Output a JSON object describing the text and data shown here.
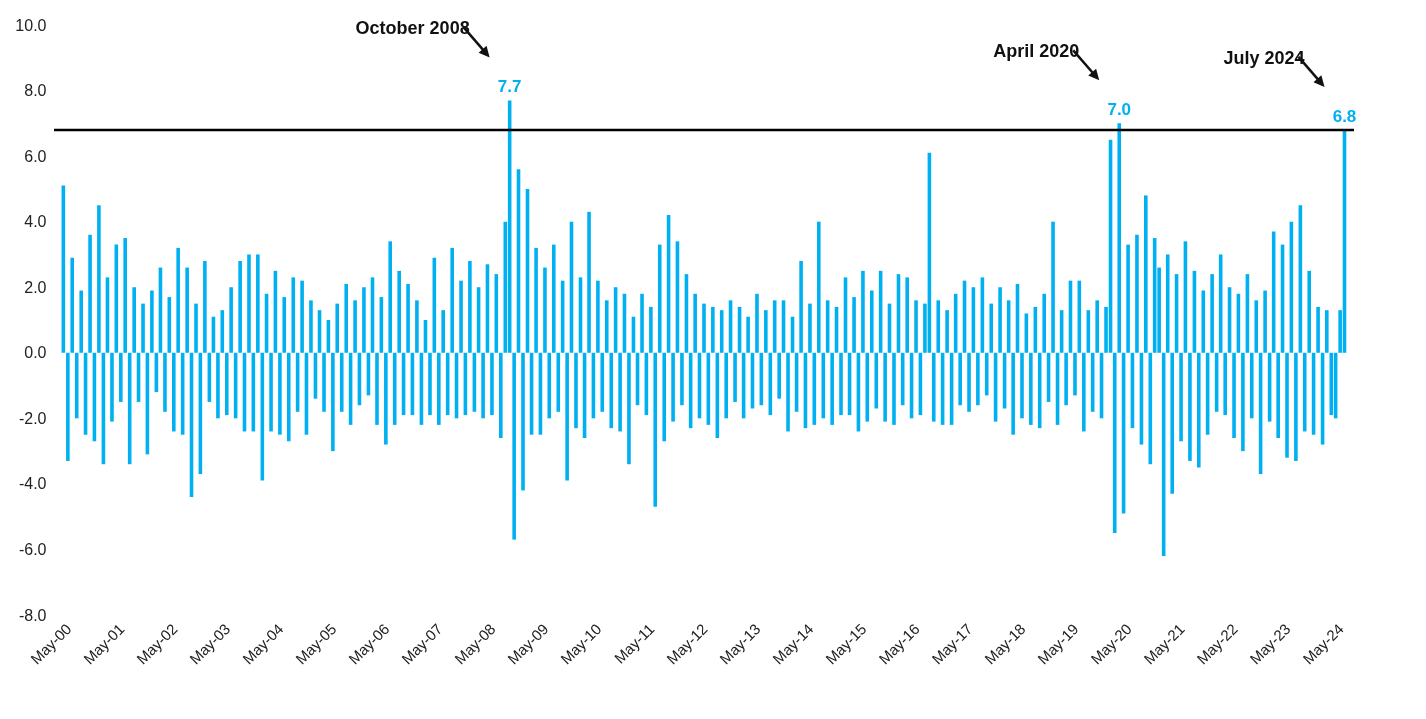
{
  "chart_data": {
    "type": "bar",
    "color": "#00b0f0",
    "x": [
      "2000-05",
      "2000-06",
      "2000-07",
      "2000-08",
      "2000-09",
      "2000-10",
      "2000-11",
      "2000-12",
      "2001-01",
      "2001-02",
      "2001-03",
      "2001-04",
      "2001-05",
      "2001-06",
      "2001-07",
      "2001-08",
      "2001-09",
      "2001-10",
      "2001-11",
      "2001-12",
      "2002-01",
      "2002-02",
      "2002-03",
      "2002-04",
      "2002-05",
      "2002-06",
      "2002-07",
      "2002-08",
      "2002-09",
      "2002-10",
      "2002-11",
      "2002-12",
      "2003-01",
      "2003-02",
      "2003-03",
      "2003-04",
      "2003-05",
      "2003-06",
      "2003-07",
      "2003-08",
      "2003-09",
      "2003-10",
      "2003-11",
      "2003-12",
      "2004-01",
      "2004-02",
      "2004-03",
      "2004-04",
      "2004-05",
      "2004-06",
      "2004-07",
      "2004-08",
      "2004-09",
      "2004-10",
      "2004-11",
      "2004-12",
      "2005-01",
      "2005-02",
      "2005-03",
      "2005-04",
      "2005-05",
      "2005-06",
      "2005-07",
      "2005-08",
      "2005-09",
      "2005-10",
      "2005-11",
      "2005-12",
      "2006-01",
      "2006-02",
      "2006-03",
      "2006-04",
      "2006-05",
      "2006-06",
      "2006-07",
      "2006-08",
      "2006-09",
      "2006-10",
      "2006-11",
      "2006-12",
      "2007-01",
      "2007-02",
      "2007-03",
      "2007-04",
      "2007-05",
      "2007-06",
      "2007-07",
      "2007-08",
      "2007-09",
      "2007-10",
      "2007-11",
      "2007-12",
      "2008-01",
      "2008-02",
      "2008-03",
      "2008-04",
      "2008-05",
      "2008-06",
      "2008-07",
      "2008-08",
      "2008-09",
      "2008-10",
      "2008-11",
      "2008-12",
      "2009-01",
      "2009-02",
      "2009-03",
      "2009-04",
      "2009-05",
      "2009-06",
      "2009-07",
      "2009-08",
      "2009-09",
      "2009-10",
      "2009-11",
      "2009-12",
      "2010-01",
      "2010-02",
      "2010-03",
      "2010-04",
      "2010-05",
      "2010-06",
      "2010-07",
      "2010-08",
      "2010-09",
      "2010-10",
      "2010-11",
      "2010-12",
      "2011-01",
      "2011-02",
      "2011-03",
      "2011-04",
      "2011-05",
      "2011-06",
      "2011-07",
      "2011-08",
      "2011-09",
      "2011-10",
      "2011-11",
      "2011-12",
      "2012-01",
      "2012-02",
      "2012-03",
      "2012-04",
      "2012-05",
      "2012-06",
      "2012-07",
      "2012-08",
      "2012-09",
      "2012-10",
      "2012-11",
      "2012-12",
      "2013-01",
      "2013-02",
      "2013-03",
      "2013-04",
      "2013-05",
      "2013-06",
      "2013-07",
      "2013-08",
      "2013-09",
      "2013-10",
      "2013-11",
      "2013-12",
      "2014-01",
      "2014-02",
      "2014-03",
      "2014-04",
      "2014-05",
      "2014-06",
      "2014-07",
      "2014-08",
      "2014-09",
      "2014-10",
      "2014-11",
      "2014-12",
      "2015-01",
      "2015-02",
      "2015-03",
      "2015-04",
      "2015-05",
      "2015-06",
      "2015-07",
      "2015-08",
      "2015-09",
      "2015-10",
      "2015-11",
      "2015-12",
      "2016-01",
      "2016-02",
      "2016-03",
      "2016-04",
      "2016-05",
      "2016-06",
      "2016-07",
      "2016-08",
      "2016-09",
      "2016-10",
      "2016-11",
      "2016-12",
      "2017-01",
      "2017-02",
      "2017-03",
      "2017-04",
      "2017-05",
      "2017-06",
      "2017-07",
      "2017-08",
      "2017-09",
      "2017-10",
      "2017-11",
      "2017-12",
      "2018-01",
      "2018-02",
      "2018-03",
      "2018-04",
      "2018-05",
      "2018-06",
      "2018-07",
      "2018-08",
      "2018-09",
      "2018-10",
      "2018-11",
      "2018-12",
      "2019-01",
      "2019-02",
      "2019-03",
      "2019-04",
      "2019-05",
      "2019-06",
      "2019-07",
      "2019-08",
      "2019-09",
      "2019-10",
      "2019-11",
      "2019-12",
      "2020-01",
      "2020-02",
      "2020-03",
      "2020-04",
      "2020-05",
      "2020-06",
      "2020-07",
      "2020-08",
      "2020-09",
      "2020-10",
      "2020-11",
      "2020-12",
      "2021-01",
      "2021-02",
      "2021-03",
      "2021-04",
      "2021-05",
      "2021-06",
      "2021-07",
      "2021-08",
      "2021-09",
      "2021-10",
      "2021-11",
      "2021-12",
      "2022-01",
      "2022-02",
      "2022-03",
      "2022-04",
      "2022-05",
      "2022-06",
      "2022-07",
      "2022-08",
      "2022-09",
      "2022-10",
      "2022-11",
      "2022-12",
      "2023-01",
      "2023-02",
      "2023-03",
      "2023-04",
      "2023-05",
      "2023-06",
      "2023-07",
      "2023-08",
      "2023-09",
      "2023-10",
      "2023-11",
      "2023-12",
      "2024-01",
      "2024-02",
      "2024-03",
      "2024-04",
      "2024-05",
      "2024-06",
      "2024-07"
    ],
    "values": [
      5.1,
      -3.3,
      2.9,
      -2.0,
      1.9,
      -2.5,
      3.6,
      -2.7,
      4.5,
      -3.4,
      2.3,
      -2.1,
      3.3,
      -1.5,
      3.5,
      -3.4,
      2.0,
      -1.5,
      1.5,
      -3.1,
      1.9,
      -1.2,
      2.6,
      -1.8,
      1.7,
      -2.4,
      3.2,
      -2.5,
      2.6,
      -4.4,
      1.5,
      -3.7,
      2.8,
      -1.5,
      1.1,
      -2.0,
      1.3,
      -1.9,
      2.0,
      -2.0,
      2.8,
      -2.4,
      3.0,
      -2.4,
      3.0,
      -3.9,
      1.8,
      -2.4,
      2.5,
      -2.5,
      1.7,
      -2.7,
      2.3,
      -1.8,
      2.2,
      -2.5,
      1.6,
      -1.4,
      1.3,
      -1.8,
      1.0,
      -3.0,
      1.5,
      -1.8,
      2.1,
      -2.2,
      1.6,
      -1.6,
      2.0,
      -1.3,
      2.3,
      -2.2,
      1.7,
      -2.8,
      3.4,
      -2.2,
      2.5,
      -1.9,
      2.1,
      -1.9,
      1.6,
      -2.2,
      1.0,
      -1.9,
      2.9,
      -2.2,
      1.3,
      -1.9,
      3.2,
      -2.0,
      2.2,
      -1.9,
      2.8,
      -1.8,
      2.0,
      -2.0,
      2.7,
      -1.9,
      2.4,
      -2.6,
      4.0,
      7.7,
      -5.7,
      5.6,
      -4.2,
      5.0,
      -2.5,
      3.2,
      -2.5,
      2.6,
      -2.0,
      3.3,
      -1.8,
      2.2,
      -3.9,
      4.0,
      -2.3,
      2.3,
      -2.6,
      4.3,
      -2.0,
      2.2,
      -1.8,
      1.6,
      -2.3,
      2.0,
      -2.4,
      1.8,
      -3.4,
      1.1,
      -1.6,
      1.8,
      -1.9,
      1.4,
      -4.7,
      3.3,
      -2.7,
      4.2,
      -2.1,
      3.4,
      -1.6,
      2.4,
      -2.3,
      1.8,
      -2.0,
      1.5,
      -2.2,
      1.4,
      -2.6,
      1.3,
      -2.0,
      1.6,
      -1.5,
      1.4,
      -2.0,
      1.1,
      -1.7,
      1.8,
      -1.6,
      1.3,
      -1.9,
      1.6,
      -1.4,
      1.6,
      -2.4,
      1.1,
      -1.8,
      2.8,
      -2.3,
      1.5,
      -2.2,
      4.0,
      -2.0,
      1.6,
      -2.2,
      1.4,
      -1.9,
      2.3,
      -1.9,
      1.7,
      -2.4,
      2.5,
      -2.1,
      1.9,
      -1.7,
      2.5,
      -2.1,
      1.5,
      -2.2,
      2.4,
      -1.6,
      2.3,
      -2.0,
      1.6,
      -1.9,
      1.5,
      6.1,
      -2.1,
      1.6,
      -2.2,
      1.3,
      -2.2,
      1.8,
      -1.6,
      2.2,
      -1.8,
      2.0,
      -1.6,
      2.3,
      -1.3,
      1.5,
      -2.1,
      2.0,
      -1.7,
      1.6,
      -2.5,
      2.1,
      -2.0,
      1.2,
      -2.2,
      1.4,
      -2.3,
      1.8,
      -1.5,
      4.0,
      -2.2,
      1.3,
      -1.6,
      2.2,
      -1.3,
      2.2,
      -2.4,
      1.3,
      -1.8,
      1.6,
      -2.0,
      1.4,
      6.5,
      -5.5,
      7.0,
      -4.9,
      3.3,
      -2.3,
      3.6,
      -2.8,
      4.8,
      -3.4,
      3.5,
      2.6,
      -6.2,
      3.0,
      -4.3,
      2.4,
      -2.7,
      3.4,
      -3.3,
      2.5,
      -3.5,
      1.9,
      -2.5,
      2.4,
      -1.8,
      3.0,
      -1.9,
      2.0,
      -2.6,
      1.8,
      -3.0,
      2.4,
      -2.0,
      1.6,
      -3.7,
      1.9,
      -2.1,
      3.7,
      -2.6,
      3.3,
      -3.2,
      4.0,
      -3.3,
      4.5,
      -2.4,
      2.5,
      -2.5,
      1.4,
      -2.8,
      1.3,
      -1.9,
      -2.0,
      1.3,
      6.8
    ],
    "value_labels": [
      null,
      null,
      null,
      null,
      null,
      null,
      null,
      null,
      null,
      null,
      null,
      null,
      null,
      null,
      null,
      null,
      null,
      null,
      null,
      null,
      null,
      null,
      null,
      null,
      null,
      null,
      null,
      null,
      null,
      null,
      null,
      null,
      null,
      null,
      null,
      null,
      null,
      null,
      null,
      null,
      null,
      null,
      null,
      null,
      null,
      null,
      null,
      null,
      null,
      null,
      null,
      null,
      null,
      null,
      null,
      null,
      null,
      null,
      null,
      null,
      null,
      null,
      null,
      null,
      null,
      null,
      null,
      null,
      null,
      null,
      null,
      null,
      null,
      null,
      null,
      null,
      null,
      null,
      null,
      null,
      null,
      null,
      null,
      null,
      null,
      null,
      null,
      null,
      null,
      null,
      null,
      null,
      null,
      null,
      null,
      null,
      null,
      null,
      null,
      null,
      null,
      "7.7",
      null,
      null,
      null,
      null,
      null,
      null,
      null,
      null,
      null,
      null,
      null,
      null,
      null,
      null,
      null,
      null,
      null,
      null,
      null,
      null,
      null,
      null,
      null,
      null,
      null,
      null,
      null,
      null,
      null,
      null,
      null,
      null,
      null,
      null,
      null,
      null,
      null,
      null,
      null,
      null,
      null,
      null,
      null,
      null,
      null,
      null,
      null,
      null,
      null,
      null,
      null,
      null,
      null,
      null,
      null,
      null,
      null,
      null,
      null,
      null,
      null,
      null,
      null,
      null,
      null,
      null,
      null,
      null,
      null,
      null,
      null,
      null,
      null,
      null,
      null,
      null,
      null,
      null,
      null,
      null,
      null,
      null,
      null,
      null,
      null,
      null,
      null,
      null,
      null,
      null,
      null,
      null,
      null,
      null,
      null,
      null,
      null,
      null,
      null,
      null,
      null,
      null,
      null,
      null,
      null,
      null,
      null,
      null,
      null,
      null,
      null,
      null,
      null,
      null,
      null,
      null,
      null,
      null,
      null,
      null,
      null,
      null,
      null,
      null,
      null,
      null,
      null,
      null,
      null,
      null,
      null,
      null,
      null,
      null,
      null,
      null,
      null,
      "7.0",
      null,
      null,
      null,
      null,
      null,
      null,
      null,
      null,
      null,
      null,
      null,
      null,
      null,
      null,
      null,
      null,
      null,
      null,
      null,
      null,
      null,
      null,
      null,
      null,
      null,
      null,
      null,
      null,
      null,
      null,
      null,
      null,
      null,
      null,
      null,
      null,
      null,
      null,
      null,
      null,
      null,
      null,
      null,
      null,
      null,
      null,
      null,
      null,
      null,
      null,
      "6.8"
    ],
    "xlim": [
      "2000-04",
      "2024-08"
    ],
    "xticks": [
      {
        "value": "2000-05",
        "label": "May-00"
      },
      {
        "value": "2001-05",
        "label": "May-01"
      },
      {
        "value": "2002-05",
        "label": "May-02"
      },
      {
        "value": "2003-05",
        "label": "May-03"
      },
      {
        "value": "2004-05",
        "label": "May-04"
      },
      {
        "value": "2005-05",
        "label": "May-05"
      },
      {
        "value": "2006-05",
        "label": "May-06"
      },
      {
        "value": "2007-05",
        "label": "May-07"
      },
      {
        "value": "2008-05",
        "label": "May-08"
      },
      {
        "value": "2009-05",
        "label": "May-09"
      },
      {
        "value": "2010-05",
        "label": "May-10"
      },
      {
        "value": "2011-05",
        "label": "May-11"
      },
      {
        "value": "2012-05",
        "label": "May-12"
      },
      {
        "value": "2013-05",
        "label": "May-13"
      },
      {
        "value": "2014-05",
        "label": "May-14"
      },
      {
        "value": "2015-05",
        "label": "May-15"
      },
      {
        "value": "2016-05",
        "label": "May-16"
      },
      {
        "value": "2017-05",
        "label": "May-17"
      },
      {
        "value": "2018-05",
        "label": "May-18"
      },
      {
        "value": "2019-05",
        "label": "May-19"
      },
      {
        "value": "2020-05",
        "label": "May-20"
      },
      {
        "value": "2021-05",
        "label": "May-21"
      },
      {
        "value": "2022-05",
        "label": "May-22"
      },
      {
        "value": "2023-05",
        "label": "May-23"
      },
      {
        "value": "2024-05",
        "label": "May-24"
      }
    ],
    "ylim": [
      -8,
      10
    ],
    "yticks": [
      {
        "value": -8,
        "label": "-8.0"
      },
      {
        "value": -6,
        "label": "-6.0"
      },
      {
        "value": -4,
        "label": "-4.0"
      },
      {
        "value": -2,
        "label": "-2.0"
      },
      {
        "value": 0,
        "label": "0.0"
      },
      {
        "value": 2,
        "label": "2.0"
      },
      {
        "value": 4,
        "label": "4.0"
      },
      {
        "value": 6,
        "label": "6.0"
      },
      {
        "value": 8,
        "label": "8.0"
      },
      {
        "value": 10,
        "label": "10.0"
      }
    ],
    "ref_lines": [
      {
        "axis": "y",
        "value": 6.8,
        "color": "#000000"
      }
    ],
    "annotations": [
      "October 2008",
      "April 2020",
      "July 2024"
    ]
  }
}
